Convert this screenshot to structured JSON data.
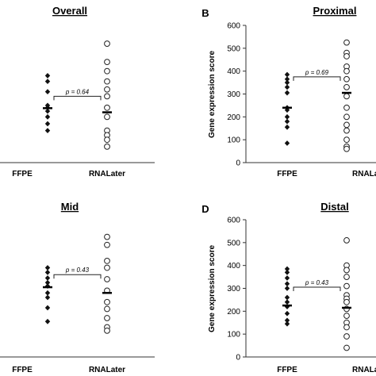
{
  "chart_data": [
    {
      "type": "scatter",
      "panel_label": "",
      "title": "Overall",
      "ylabel": "",
      "ylim": [
        0,
        600
      ],
      "yticks": [],
      "categories": [
        "FFPE",
        "RNALater"
      ],
      "series": [
        {
          "name": "FFPE",
          "marker": "diamond-filled",
          "values": [
            380,
            355,
            310,
            250,
            240,
            225,
            200,
            170,
            140
          ],
          "mean": 238
        },
        {
          "name": "RNALater",
          "marker": "circle-open",
          "values": [
            520,
            440,
            400,
            355,
            320,
            290,
            240,
            200,
            140,
            120,
            100,
            70
          ],
          "mean": 220
        }
      ],
      "comparison": {
        "text": "p = 0.64",
        "bracket_y": 290
      }
    },
    {
      "type": "scatter",
      "panel_label": "B",
      "title": "Proximal",
      "ylabel": "Gene expression score",
      "ylim": [
        0,
        600
      ],
      "yticks": [
        "0",
        "100",
        "200",
        "300",
        "400",
        "500",
        "600"
      ],
      "categories": [
        "FFPE",
        "RNALater"
      ],
      "series": [
        {
          "name": "FFPE",
          "marker": "diamond-filled",
          "values": [
            385,
            365,
            350,
            330,
            305,
            240,
            230,
            200,
            180,
            155,
            85
          ],
          "mean": 240
        },
        {
          "name": "RNALater",
          "marker": "circle-open",
          "values": [
            525,
            480,
            465,
            420,
            400,
            365,
            330,
            290,
            240,
            200,
            165,
            140,
            100,
            70,
            60
          ],
          "mean": 305
        }
      ],
      "comparison": {
        "text": "p = 0.69",
        "bracket_y": 375
      }
    },
    {
      "type": "scatter",
      "panel_label": "",
      "title": "Mid",
      "ylabel": "",
      "ylim": [
        0,
        600
      ],
      "yticks": [],
      "categories": [
        "FFPE",
        "RNALater"
      ],
      "series": [
        {
          "name": "FFPE",
          "marker": "diamond-filled",
          "values": [
            390,
            370,
            345,
            325,
            310,
            280,
            260,
            215,
            155
          ],
          "mean": 305
        },
        {
          "name": "RNALater",
          "marker": "circle-open",
          "values": [
            525,
            490,
            420,
            390,
            340,
            290,
            240,
            210,
            170,
            130,
            115
          ],
          "mean": 280
        }
      ],
      "comparison": {
        "text": "p = 0.43",
        "bracket_y": 360
      }
    },
    {
      "type": "scatter",
      "panel_label": "D",
      "title": "Distal",
      "ylabel": "Gene expression score",
      "ylim": [
        0,
        600
      ],
      "yticks": [
        "0",
        "100",
        "200",
        "300",
        "400",
        "500",
        "600"
      ],
      "categories": [
        "FFPE",
        "RNALater"
      ],
      "series": [
        {
          "name": "FFPE",
          "marker": "diamond-filled",
          "values": [
            385,
            370,
            345,
            320,
            300,
            260,
            240,
            220,
            190,
            160,
            145
          ],
          "mean": 225
        },
        {
          "name": "RNALater",
          "marker": "circle-open",
          "values": [
            510,
            400,
            380,
            350,
            310,
            270,
            255,
            240,
            210,
            180,
            150,
            130,
            90,
            40
          ],
          "mean": 215
        }
      ],
      "comparison": {
        "text": "p = 0.43",
        "bracket_y": 305
      }
    }
  ]
}
